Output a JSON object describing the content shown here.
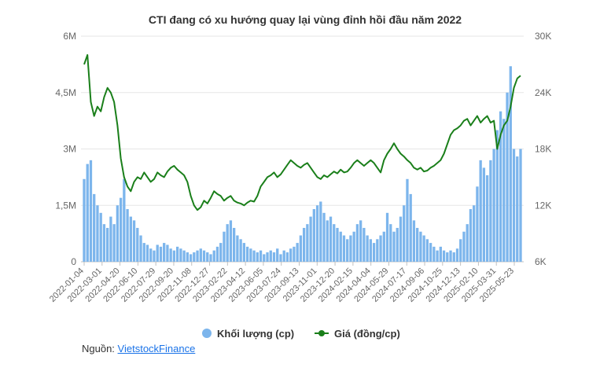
{
  "chart_data": {
    "type": "bar+line",
    "title": "CTI đang có xu hướng quay lại vùng đỉnh hồi đầu năm 2022",
    "x_tick_labels": [
      "2022-01-04",
      "2022-03-01",
      "2022-04-20",
      "2022-06-10",
      "2022-07-29",
      "2022-09-20",
      "2022-11-08",
      "2022-12-27",
      "2023-02-22",
      "2023-04-12",
      "2023-06-05",
      "2023-07-24",
      "2023-09-13",
      "2023-11-01",
      "2023-12-20",
      "2024-02-15",
      "2024-04-04",
      "2024-05-29",
      "2024-07-17",
      "2024-09-06",
      "2024-10-25",
      "2024-12-13",
      "2025-02-10",
      "2025-03-31",
      "2025-05-23"
    ],
    "y_left": {
      "ticks": [
        "0",
        "1,5M",
        "3M",
        "4,5M",
        "6M"
      ],
      "min": 0,
      "max": 6000000
    },
    "y_right": {
      "ticks": [
        "6K",
        "12K",
        "18K",
        "24K",
        "30K"
      ],
      "min": 6000,
      "max": 30000
    },
    "series": [
      {
        "name": "Khối lượng (cp)",
        "kind": "bar",
        "axis": "left",
        "color": "#7cb5ec",
        "points": [
          [
            0,
            2200000
          ],
          [
            1,
            2600000
          ],
          [
            2,
            2700000
          ],
          [
            3,
            1800000
          ],
          [
            4,
            1500000
          ],
          [
            5,
            1300000
          ],
          [
            6,
            1000000
          ],
          [
            7,
            900000
          ],
          [
            8,
            1200000
          ],
          [
            9,
            1000000
          ],
          [
            10,
            1500000
          ],
          [
            11,
            1700000
          ],
          [
            12,
            2200000
          ],
          [
            13,
            1400000
          ],
          [
            14,
            1200000
          ],
          [
            15,
            1100000
          ],
          [
            16,
            900000
          ],
          [
            17,
            700000
          ],
          [
            18,
            500000
          ],
          [
            19,
            450000
          ],
          [
            20,
            350000
          ],
          [
            21,
            300000
          ],
          [
            22,
            450000
          ],
          [
            23,
            400000
          ],
          [
            24,
            500000
          ],
          [
            25,
            450000
          ],
          [
            26,
            350000
          ],
          [
            27,
            300000
          ],
          [
            28,
            400000
          ],
          [
            29,
            350000
          ],
          [
            30,
            300000
          ],
          [
            31,
            250000
          ],
          [
            32,
            200000
          ],
          [
            33,
            250000
          ],
          [
            34,
            300000
          ],
          [
            35,
            350000
          ],
          [
            36,
            300000
          ],
          [
            37,
            250000
          ],
          [
            38,
            200000
          ],
          [
            39,
            300000
          ],
          [
            40,
            400000
          ],
          [
            41,
            500000
          ],
          [
            42,
            800000
          ],
          [
            43,
            1000000
          ],
          [
            44,
            1100000
          ],
          [
            45,
            900000
          ],
          [
            46,
            700000
          ],
          [
            47,
            600000
          ],
          [
            48,
            500000
          ],
          [
            49,
            400000
          ],
          [
            50,
            350000
          ],
          [
            51,
            300000
          ],
          [
            52,
            250000
          ],
          [
            53,
            300000
          ],
          [
            54,
            200000
          ],
          [
            55,
            250000
          ],
          [
            56,
            300000
          ],
          [
            57,
            250000
          ],
          [
            58,
            350000
          ],
          [
            59,
            200000
          ],
          [
            60,
            300000
          ],
          [
            61,
            250000
          ],
          [
            62,
            350000
          ],
          [
            63,
            400000
          ],
          [
            64,
            500000
          ],
          [
            65,
            700000
          ],
          [
            66,
            900000
          ],
          [
            67,
            1000000
          ],
          [
            68,
            1200000
          ],
          [
            69,
            1400000
          ],
          [
            70,
            1500000
          ],
          [
            71,
            1600000
          ],
          [
            72,
            1300000
          ],
          [
            73,
            1100000
          ],
          [
            74,
            1200000
          ],
          [
            75,
            1000000
          ],
          [
            76,
            900000
          ],
          [
            77,
            800000
          ],
          [
            78,
            700000
          ],
          [
            79,
            600000
          ],
          [
            80,
            700000
          ],
          [
            81,
            800000
          ],
          [
            82,
            1000000
          ],
          [
            83,
            1100000
          ],
          [
            84,
            900000
          ],
          [
            85,
            700000
          ],
          [
            86,
            600000
          ],
          [
            87,
            500000
          ],
          [
            88,
            600000
          ],
          [
            89,
            700000
          ],
          [
            90,
            800000
          ],
          [
            91,
            1300000
          ],
          [
            92,
            1000000
          ],
          [
            93,
            800000
          ],
          [
            94,
            900000
          ],
          [
            95,
            1200000
          ],
          [
            96,
            1500000
          ],
          [
            97,
            2200000
          ],
          [
            98,
            1800000
          ],
          [
            99,
            1100000
          ],
          [
            100,
            900000
          ],
          [
            101,
            800000
          ],
          [
            102,
            700000
          ],
          [
            103,
            600000
          ],
          [
            104,
            500000
          ],
          [
            105,
            400000
          ],
          [
            106,
            300000
          ],
          [
            107,
            400000
          ],
          [
            108,
            300000
          ],
          [
            109,
            250000
          ],
          [
            110,
            300000
          ],
          [
            111,
            250000
          ],
          [
            112,
            350000
          ],
          [
            113,
            600000
          ],
          [
            114,
            800000
          ],
          [
            115,
            1000000
          ],
          [
            116,
            1400000
          ],
          [
            117,
            1500000
          ],
          [
            118,
            2000000
          ],
          [
            119,
            2700000
          ],
          [
            120,
            2500000
          ],
          [
            121,
            2300000
          ],
          [
            122,
            2700000
          ],
          [
            123,
            3000000
          ],
          [
            124,
            3500000
          ],
          [
            125,
            4000000
          ],
          [
            126,
            3800000
          ],
          [
            127,
            4500000
          ],
          [
            128,
            5200000
          ],
          [
            129,
            3000000
          ],
          [
            130,
            2800000
          ],
          [
            131,
            3000000
          ]
        ]
      },
      {
        "name": "Giá (đồng/cp)",
        "kind": "line",
        "axis": "right",
        "color": "#1a7f1a",
        "points": [
          [
            0,
            27000
          ],
          [
            1,
            28000
          ],
          [
            2,
            23000
          ],
          [
            3,
            21500
          ],
          [
            4,
            22500
          ],
          [
            5,
            22000
          ],
          [
            6,
            23500
          ],
          [
            7,
            24500
          ],
          [
            8,
            24000
          ],
          [
            9,
            23000
          ],
          [
            10,
            20500
          ],
          [
            11,
            17000
          ],
          [
            12,
            15000
          ],
          [
            13,
            14000
          ],
          [
            14,
            13500
          ],
          [
            15,
            14500
          ],
          [
            16,
            15000
          ],
          [
            17,
            14800
          ],
          [
            18,
            15500
          ],
          [
            19,
            15000
          ],
          [
            20,
            14500
          ],
          [
            21,
            14800
          ],
          [
            22,
            15500
          ],
          [
            23,
            15200
          ],
          [
            24,
            15000
          ],
          [
            25,
            15600
          ],
          [
            26,
            16000
          ],
          [
            27,
            16200
          ],
          [
            28,
            15800
          ],
          [
            29,
            15500
          ],
          [
            30,
            15200
          ],
          [
            31,
            14500
          ],
          [
            32,
            13000
          ],
          [
            33,
            12000
          ],
          [
            34,
            11500
          ],
          [
            35,
            11800
          ],
          [
            36,
            12500
          ],
          [
            37,
            12200
          ],
          [
            38,
            12800
          ],
          [
            39,
            13500
          ],
          [
            40,
            13200
          ],
          [
            41,
            13000
          ],
          [
            42,
            12500
          ],
          [
            43,
            12800
          ],
          [
            44,
            13000
          ],
          [
            45,
            12500
          ],
          [
            46,
            12300
          ],
          [
            47,
            12200
          ],
          [
            48,
            12000
          ],
          [
            49,
            12300
          ],
          [
            50,
            12500
          ],
          [
            51,
            12400
          ],
          [
            52,
            13000
          ],
          [
            53,
            14000
          ],
          [
            54,
            14500
          ],
          [
            55,
            15000
          ],
          [
            56,
            15200
          ],
          [
            57,
            15500
          ],
          [
            58,
            15000
          ],
          [
            59,
            15300
          ],
          [
            60,
            15800
          ],
          [
            61,
            16300
          ],
          [
            62,
            16800
          ],
          [
            63,
            16500
          ],
          [
            64,
            16200
          ],
          [
            65,
            16000
          ],
          [
            66,
            16300
          ],
          [
            67,
            16500
          ],
          [
            68,
            16000
          ],
          [
            69,
            15500
          ],
          [
            70,
            15000
          ],
          [
            71,
            14800
          ],
          [
            72,
            15200
          ],
          [
            73,
            15000
          ],
          [
            74,
            15300
          ],
          [
            75,
            15600
          ],
          [
            76,
            15400
          ],
          [
            77,
            15800
          ],
          [
            78,
            15500
          ],
          [
            79,
            15600
          ],
          [
            80,
            16000
          ],
          [
            81,
            16500
          ],
          [
            82,
            16800
          ],
          [
            83,
            16500
          ],
          [
            84,
            16200
          ],
          [
            85,
            16500
          ],
          [
            86,
            16800
          ],
          [
            87,
            16500
          ],
          [
            88,
            16000
          ],
          [
            89,
            15500
          ],
          [
            90,
            16800
          ],
          [
            91,
            17500
          ],
          [
            92,
            18000
          ],
          [
            93,
            18600
          ],
          [
            94,
            18000
          ],
          [
            95,
            17500
          ],
          [
            96,
            17200
          ],
          [
            97,
            16800
          ],
          [
            98,
            16500
          ],
          [
            99,
            16000
          ],
          [
            100,
            15800
          ],
          [
            101,
            16000
          ],
          [
            102,
            15600
          ],
          [
            103,
            15700
          ],
          [
            104,
            16000
          ],
          [
            105,
            16200
          ],
          [
            106,
            16500
          ],
          [
            107,
            16800
          ],
          [
            108,
            17500
          ],
          [
            109,
            18500
          ],
          [
            110,
            19500
          ],
          [
            111,
            20000
          ],
          [
            112,
            20200
          ],
          [
            113,
            20500
          ],
          [
            114,
            21000
          ],
          [
            115,
            21200
          ],
          [
            116,
            20500
          ],
          [
            117,
            21000
          ],
          [
            118,
            21500
          ],
          [
            119,
            20800
          ],
          [
            120,
            21200
          ],
          [
            121,
            21500
          ],
          [
            122,
            20800
          ],
          [
            123,
            21000
          ],
          [
            124,
            18000
          ],
          [
            125,
            19500
          ],
          [
            126,
            20500
          ],
          [
            127,
            21000
          ],
          [
            128,
            22500
          ],
          [
            129,
            24500
          ],
          [
            130,
            25500
          ],
          [
            131,
            25800
          ]
        ]
      }
    ],
    "legend": [
      "Khối lượng (cp)",
      "Giá (đồng/cp)"
    ],
    "legend_position": "bottom",
    "grid": true
  },
  "source": {
    "label": "Nguồn: ",
    "link_text": "VietstockFinance"
  }
}
